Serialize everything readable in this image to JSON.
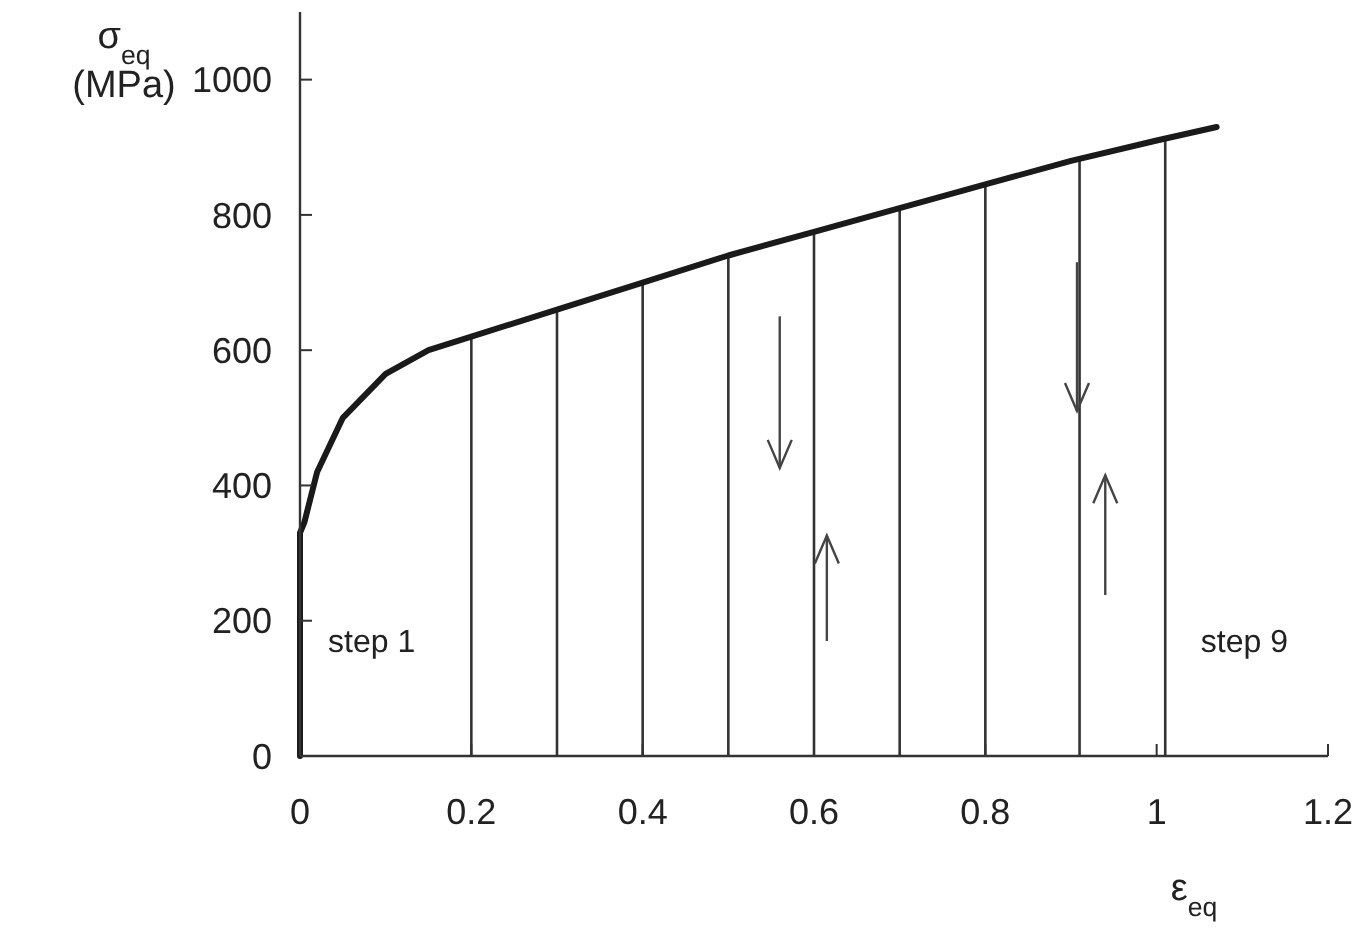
{
  "chart_data": {
    "type": "line",
    "xlabel": "ε$_{eq}$",
    "ylabel": "σ$_{eq}$ (MPa)",
    "xlim": [
      0,
      1.2
    ],
    "ylim": [
      0,
      1100
    ],
    "xticks": [
      0,
      0.2,
      0.4,
      0.6,
      0.8,
      1,
      1.2
    ],
    "yticks": [
      0,
      200,
      400,
      600,
      800,
      1000
    ],
    "marker": "none",
    "line_style": "solid",
    "series": [
      {
        "color": "#1a1a1a",
        "x": [
          0,
          0,
          0.005,
          0.02,
          0.05,
          0.1,
          0.15,
          0.2,
          0.3,
          0.4,
          0.5,
          0.6,
          0.7,
          0.8,
          0.9,
          1.0,
          1.07
        ],
        "values": [
          0,
          330,
          345,
          420,
          500,
          565,
          600,
          620,
          660,
          700,
          740,
          775,
          810,
          845,
          880,
          910,
          930
        ]
      }
    ],
    "ref_lines": [
      {
        "axis": "x",
        "value": 0.2,
        "color": "#333333"
      },
      {
        "axis": "x",
        "value": 0.3,
        "color": "#333333"
      },
      {
        "axis": "x",
        "value": 0.4,
        "color": "#333333"
      },
      {
        "axis": "x",
        "value": 0.5,
        "color": "#333333"
      },
      {
        "axis": "x",
        "value": 0.6,
        "color": "#333333"
      },
      {
        "axis": "x",
        "value": 0.7,
        "color": "#333333"
      },
      {
        "axis": "x",
        "value": 0.8,
        "color": "#333333"
      },
      {
        "axis": "x",
        "value": 0.91,
        "color": "#333333"
      },
      {
        "axis": "x",
        "value": 1.01,
        "color": "#333333"
      }
    ],
    "annotations": [
      "step 1",
      "step 9"
    ]
  }
}
